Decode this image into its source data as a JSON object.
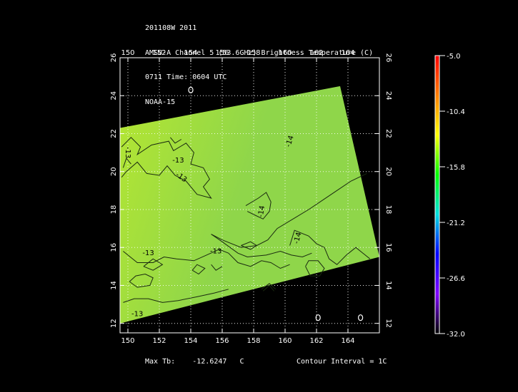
{
  "header": {
    "line1": "201108W 2011",
    "line2": "AMSU-A Channel 5 (53.6GHz) Brightness Temperature (C)",
    "line3": "0711 Time: 0604 UTC",
    "line4": "NOAA-15"
  },
  "footer": {
    "max_label": "Max Tb:",
    "max_value": "-12.6247",
    "max_unit": "C",
    "contour_label": "Contour Interval = 1C"
  },
  "colorbar": {
    "tick_labels": [
      "-5.0",
      "-10.4",
      "-15.8",
      "-21.2",
      "-26.6",
      "-32.0"
    ],
    "min": -32.0,
    "max": -5.0,
    "colors": [
      "#ff0000",
      "#ff7f00",
      "#ffff00",
      "#00ff00",
      "#00e0e0",
      "#0000ff",
      "#7f00ff",
      "#000000"
    ]
  },
  "chart_data": {
    "type": "heatmap",
    "title": "AMSU-A Channel 5 (53.6GHz) Brightness Temperature (C)",
    "x_ticks": [
      "150",
      "152",
      "154",
      "156",
      "158",
      "160",
      "162",
      "164"
    ],
    "y_ticks": [
      "12",
      "14",
      "16",
      "18",
      "20",
      "22",
      "24",
      "26"
    ],
    "xlim": [
      149.5,
      166
    ],
    "ylim": [
      11.5,
      26
    ],
    "field_color": "#b4e632",
    "field_color_cool": "#8fd64a",
    "swath_corners": [
      [
        149.5,
        22.3
      ],
      [
        163.5,
        24.5
      ],
      [
        166,
        15.5
      ],
      [
        149.5,
        12.0
      ]
    ],
    "contour_labels": [
      {
        "text": "-13",
        "x": 150.0,
        "y": 21.0,
        "rot": 90
      },
      {
        "text": "-13",
        "x": 153.2,
        "y": 20.6,
        "rot": 0
      },
      {
        "text": "-13",
        "x": 153.4,
        "y": 19.7,
        "rot": 35
      },
      {
        "text": "-14",
        "x": 160.3,
        "y": 21.6,
        "rot": -72
      },
      {
        "text": "-14",
        "x": 158.5,
        "y": 17.9,
        "rot": -80
      },
      {
        "text": "-14",
        "x": 160.8,
        "y": 16.5,
        "rot": -75
      },
      {
        "text": "-13",
        "x": 151.3,
        "y": 15.7,
        "rot": 0
      },
      {
        "text": "-13",
        "x": 155.6,
        "y": 15.8,
        "rot": 0
      },
      {
        "text": "-13",
        "x": 150.6,
        "y": 12.5,
        "rot": 0
      }
    ],
    "contours": [
      [
        [
          149.6,
          21.3
        ],
        [
          150.2,
          21.8
        ],
        [
          150.8,
          21.3
        ],
        [
          150.6,
          20.9
        ],
        [
          151.5,
          21.4
        ],
        [
          152.6,
          21.6
        ],
        [
          152.9,
          21.1
        ],
        [
          153.7,
          21.5
        ],
        [
          154.2,
          21.0
        ],
        [
          154.0,
          20.4
        ],
        [
          154.8,
          20.2
        ],
        [
          155.2,
          19.6
        ],
        [
          154.8,
          19.2
        ],
        [
          155.3,
          18.6
        ],
        [
          154.4,
          18.8
        ],
        [
          153.7,
          19.5
        ],
        [
          153.0,
          19.8
        ],
        [
          152.5,
          20.3
        ],
        [
          152.0,
          19.8
        ],
        [
          151.2,
          19.9
        ],
        [
          150.6,
          20.5
        ],
        [
          149.9,
          20.0
        ],
        [
          149.6,
          19.7
        ]
      ],
      [
        [
          152.7,
          21.8
        ],
        [
          153.0,
          21.5
        ],
        [
          153.4,
          21.7
        ]
      ],
      [
        [
          155.3,
          16.7
        ],
        [
          156.0,
          16.4
        ],
        [
          157.2,
          16.0
        ],
        [
          158.2,
          16.1
        ],
        [
          158.9,
          16.4
        ],
        [
          159.5,
          17.0
        ],
        [
          160.5,
          17.5
        ],
        [
          161.5,
          18.0
        ],
        [
          162.4,
          18.5
        ],
        [
          163.3,
          19.0
        ],
        [
          164.2,
          19.5
        ],
        [
          165.2,
          19.9
        ]
      ],
      [
        [
          155.3,
          16.7
        ],
        [
          156.0,
          16.3
        ],
        [
          157.0,
          15.7
        ],
        [
          157.6,
          15.5
        ],
        [
          158.8,
          15.6
        ],
        [
          159.7,
          15.8
        ],
        [
          160.4,
          15.6
        ],
        [
          161.1,
          15.5
        ],
        [
          161.7,
          15.7
        ]
      ],
      [
        [
          157.5,
          18.2
        ],
        [
          158.3,
          18.6
        ],
        [
          158.8,
          18.9
        ],
        [
          159.1,
          18.4
        ],
        [
          159.0,
          17.9
        ],
        [
          158.6,
          17.5
        ],
        [
          158.1,
          17.7
        ],
        [
          157.6,
          17.9
        ]
      ],
      [
        [
          157.2,
          16.1
        ],
        [
          157.8,
          16.3
        ],
        [
          158.2,
          16.1
        ],
        [
          157.8,
          15.9
        ],
        [
          157.2,
          16.1
        ]
      ],
      [
        [
          160.3,
          16.1
        ],
        [
          160.6,
          16.9
        ],
        [
          161.5,
          16.6
        ],
        [
          162.0,
          16.2
        ],
        [
          162.5,
          16.0
        ],
        [
          162.8,
          15.4
        ],
        [
          163.3,
          15.1
        ],
        [
          163.9,
          15.6
        ],
        [
          164.5,
          16.0
        ],
        [
          165.4,
          15.4
        ]
      ],
      [
        [
          149.7,
          15.8
        ],
        [
          150.6,
          15.2
        ],
        [
          151.6,
          15.2
        ],
        [
          152.3,
          15.5
        ],
        [
          153.1,
          15.4
        ],
        [
          154.2,
          15.3
        ],
        [
          155.0,
          15.6
        ],
        [
          155.8,
          15.9
        ],
        [
          156.4,
          15.7
        ],
        [
          157.0,
          15.2
        ],
        [
          157.8,
          15.0
        ],
        [
          158.5,
          15.3
        ],
        [
          159.1,
          15.2
        ],
        [
          159.7,
          14.9
        ],
        [
          160.3,
          15.1
        ]
      ],
      [
        [
          151.0,
          15.0
        ],
        [
          151.6,
          14.8
        ],
        [
          152.2,
          15.1
        ],
        [
          151.6,
          15.4
        ],
        [
          151.0,
          15.0
        ]
      ],
      [
        [
          150.1,
          14.2
        ],
        [
          150.6,
          13.9
        ],
        [
          151.4,
          14.0
        ],
        [
          151.6,
          14.4
        ],
        [
          151.1,
          14.6
        ],
        [
          150.5,
          14.5
        ],
        [
          150.1,
          14.2
        ]
      ],
      [
        [
          154.1,
          14.8
        ],
        [
          154.5,
          14.6
        ],
        [
          154.9,
          14.9
        ],
        [
          154.4,
          15.1
        ],
        [
          154.1,
          14.8
        ]
      ],
      [
        [
          161.3,
          15.0
        ],
        [
          161.6,
          14.5
        ],
        [
          162.2,
          14.5
        ],
        [
          162.5,
          14.9
        ],
        [
          162.1,
          15.3
        ],
        [
          161.5,
          15.3
        ],
        [
          161.3,
          15.0
        ]
      ],
      [
        [
          158.5,
          13.8
        ],
        [
          159.0,
          14.1
        ],
        [
          159.4,
          13.8
        ]
      ],
      [
        [
          158.6,
          13.7
        ],
        [
          159.0,
          14.0
        ],
        [
          159.3,
          13.7
        ]
      ],
      [
        [
          149.7,
          13.1
        ],
        [
          150.4,
          13.3
        ],
        [
          151.3,
          13.3
        ],
        [
          152.2,
          13.1
        ],
        [
          153.2,
          13.2
        ],
        [
          154.4,
          13.4
        ],
        [
          155.5,
          13.6
        ],
        [
          156.4,
          13.8
        ]
      ],
      [
        [
          155.3,
          15.1
        ],
        [
          155.6,
          14.8
        ],
        [
          156.0,
          15.0
        ]
      ],
      [
        [
          149.7,
          20.2
        ],
        [
          149.9,
          20.7
        ],
        [
          150.2,
          20.4
        ]
      ]
    ],
    "markers": [
      {
        "x": 154.0,
        "y": 24.3
      },
      {
        "x": 162.1,
        "y": 12.3
      },
      {
        "x": 164.8,
        "y": 12.3
      }
    ]
  }
}
